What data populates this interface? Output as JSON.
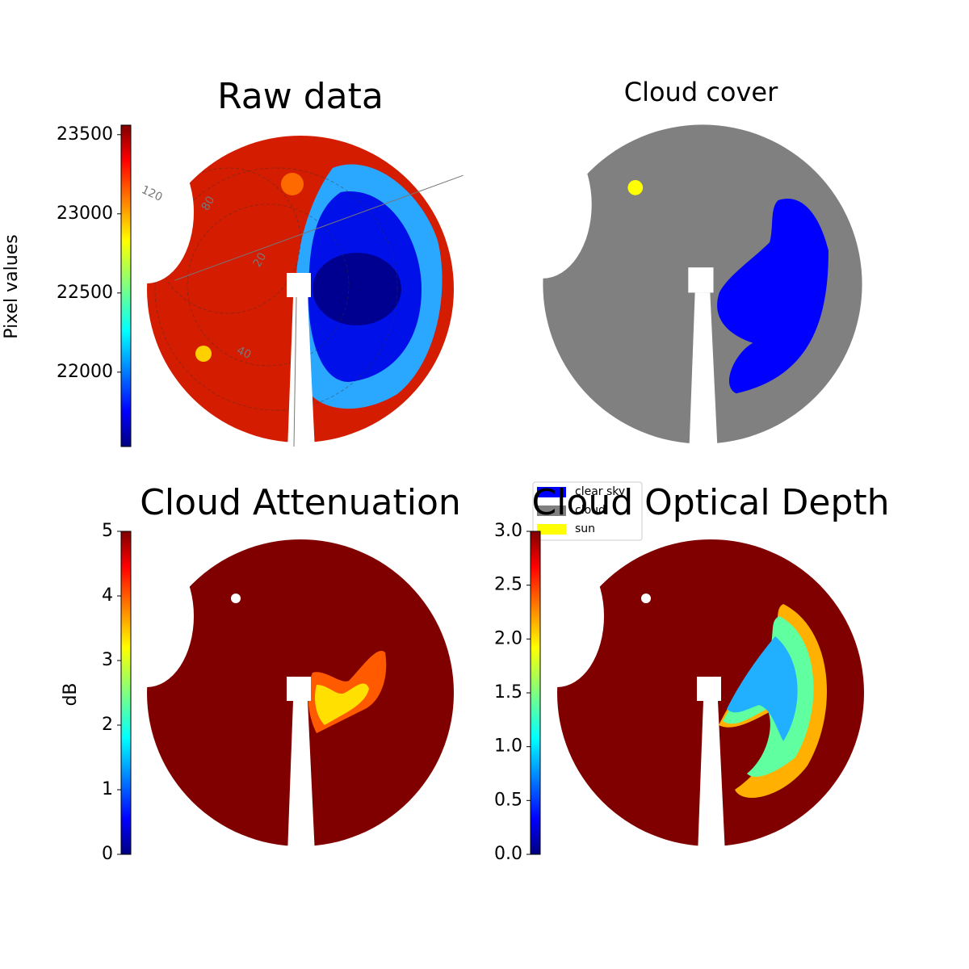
{
  "chart_data": [
    {
      "type": "image",
      "title": "Raw data",
      "colorbar_label": "Pixel values",
      "clim": [
        21530,
        23560
      ],
      "ticks": [
        22000,
        22500,
        23000,
        23500
      ],
      "annotations": [
        "120",
        "80",
        "20",
        "40"
      ]
    },
    {
      "type": "image",
      "title": "Cloud cover",
      "series": [
        {
          "name": "clear sky",
          "color": "#0000ff"
        },
        {
          "name": "cloud",
          "color": "#808080"
        },
        {
          "name": "sun",
          "color": "#ffff00"
        }
      ]
    },
    {
      "type": "image",
      "title": "Cloud Attenuation",
      "colorbar_label": "dB",
      "clim": [
        0,
        5
      ],
      "ticks": [
        0,
        1,
        2,
        3,
        4,
        5
      ]
    },
    {
      "type": "image",
      "title": "Cloud Optical Depth",
      "clim": [
        0,
        3
      ],
      "ticks": [
        {
          "value": 0,
          "label": "0.0"
        },
        {
          "value": 0.5,
          "label": "0.5"
        },
        {
          "value": 1,
          "label": "1.0"
        },
        {
          "value": 1.5,
          "label": "1.5"
        },
        {
          "value": 2,
          "label": "2.0"
        },
        {
          "value": 2.5,
          "label": "2.5"
        },
        {
          "value": 3,
          "label": "3.0"
        }
      ]
    }
  ]
}
